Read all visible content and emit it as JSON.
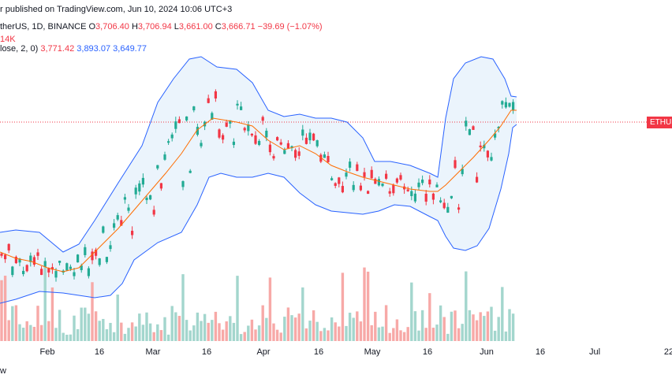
{
  "header": {
    "published": "r published on TradingView.com, Jun 10, 2024 10:06 UTC+3",
    "symbol_line": "therUS, 1D, BINANCE",
    "ohlc": {
      "o_label": "O",
      "o": "3,706.40",
      "h_label": "H",
      "h": "3,706.94",
      "l_label": "L",
      "l": "3,661.00",
      "c_label": "C",
      "c": "3,666.71",
      "change": "−39.69 (−1.07%)"
    },
    "volume_line": "14K",
    "bb_line": "lose, 2, 0)",
    "bb_basis": "3,771.42",
    "bb_upper": "3,893.07",
    "bb_lower": "3,649.77"
  },
  "price_tag": "ETHUS",
  "footer": "w",
  "colors": {
    "up": "#22ab94",
    "down": "#f23645",
    "band": "#2962ff",
    "basis": "#ff6d00",
    "band_fill": "#e3f0fb",
    "vol_up": "#a3d6cd",
    "vol_down": "#f7a9a7"
  },
  "chart_data": {
    "type": "candlestick",
    "x_ticks": [
      "Feb",
      "16",
      "Mar",
      "16",
      "Apr",
      "16",
      "May",
      "16",
      "Jun",
      "16",
      "Jul",
      "22"
    ],
    "indicators": [
      "Bollinger Bands",
      "Volume"
    ],
    "last_close": 3666.71
  }
}
